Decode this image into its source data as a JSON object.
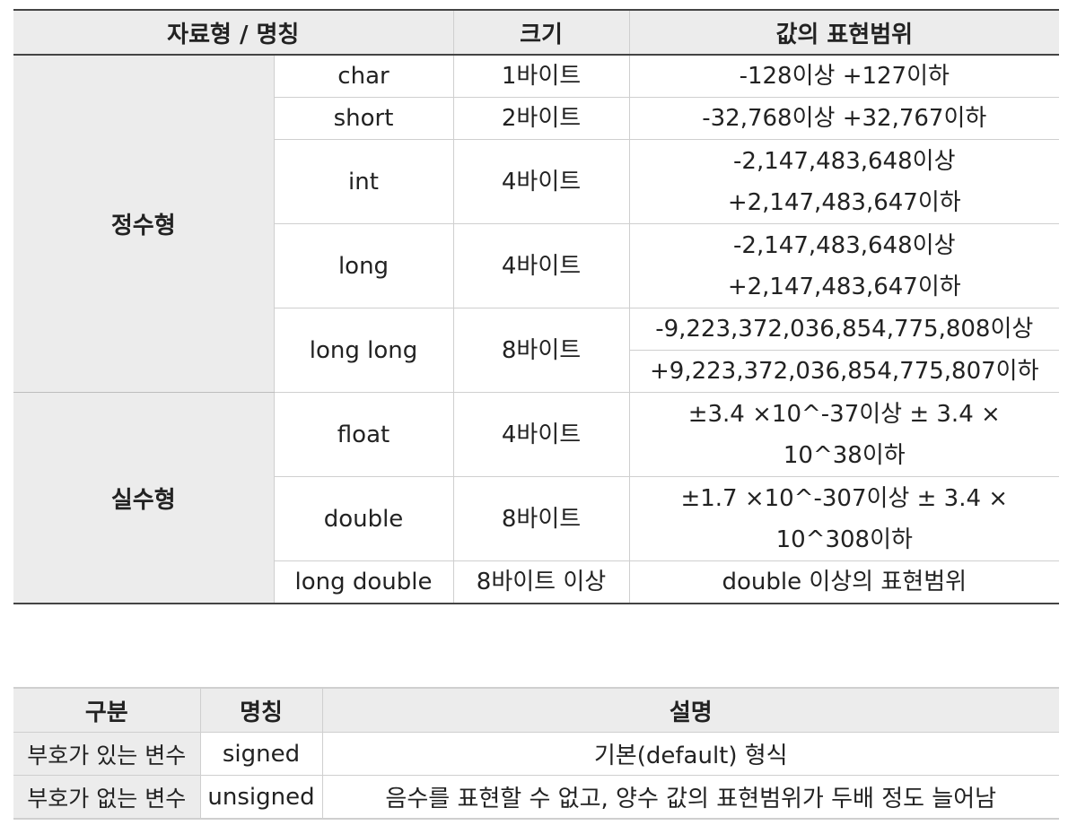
{
  "table1": {
    "headers": [
      "자료형 / 명칭",
      "크기",
      "값의 표현범위"
    ],
    "integer_label": "정수형",
    "real_label": "실수형",
    "rows": [
      {
        "name": "char",
        "size": "1바이트",
        "range": [
          "-128이상 +127이하"
        ]
      },
      {
        "name": "short",
        "size": "2바이트",
        "range": [
          "-32,768이상 +32,767이하"
        ]
      },
      {
        "name": "int",
        "size": "4바이트",
        "range": [
          "-2,147,483,648이상",
          "+2,147,483,647이하"
        ]
      },
      {
        "name": "long",
        "size": "4바이트",
        "range": [
          "-2,147,483,648이상",
          "+2,147,483,647이하"
        ]
      },
      {
        "name": "long long",
        "size": "8바이트",
        "range": [
          "-9,223,372,036,854,775,808이상",
          "+9,223,372,036,854,775,807이하"
        ]
      },
      {
        "name": "float",
        "size": "4바이트",
        "range": [
          "±3.4 ×10^-37이상 ± 3.4 ×",
          "10^38이하"
        ]
      },
      {
        "name": "double",
        "size": "8바이트",
        "range": [
          "±1.7 ×10^-307이상 ± 3.4 ×",
          "10^308이하"
        ]
      },
      {
        "name": "long double",
        "size": "8바이트 이상",
        "range": [
          "double 이상의 표현범위"
        ]
      }
    ]
  },
  "table2": {
    "headers": [
      "구분",
      "명칭",
      "설명"
    ],
    "rows": [
      {
        "kind": "부호가 있는 변수",
        "name": "signed",
        "desc": "기본(default) 형식"
      },
      {
        "kind": "부호가 없는 변수",
        "name": "unsigned",
        "desc": "음수를 표현할 수 없고, 양수 값의 표현범위가 두배 정도 늘어남"
      }
    ]
  }
}
